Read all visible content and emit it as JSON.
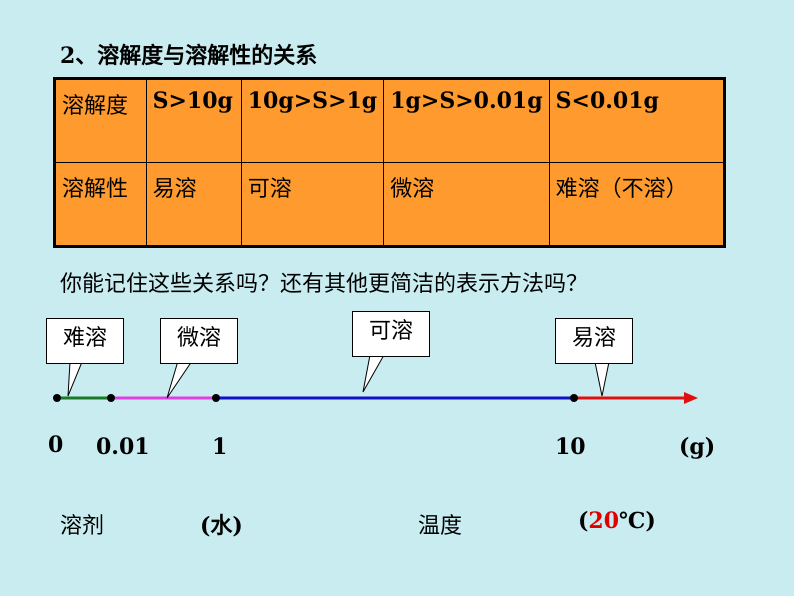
{
  "heading": "2、溶解度与溶解性的关系",
  "table": {
    "rows": [
      [
        "溶解度",
        "S>10g",
        "10g>S>1g",
        "1g>S>0.01g",
        "S<0.01g"
      ],
      [
        "溶解性",
        "易溶",
        "可溶",
        "微溶",
        "难溶（不溶）"
      ]
    ]
  },
  "question": "你能记住这些关系吗？还有其他更简洁的表示方法吗？",
  "callouts": [
    "难溶",
    "微溶",
    "可溶",
    "易溶"
  ],
  "ticks": [
    "0",
    "0.01",
    "1",
    "10",
    "(g)"
  ],
  "footer": {
    "solvent": "溶剂",
    "water": "(水)",
    "temperature": "温度",
    "temp_open": "(",
    "temp_value": "20",
    "temp_unit": "℃)"
  },
  "colors": {
    "segment_insoluble": "#1b7a2a",
    "segment_slightly": "#e040e0",
    "segment_soluble": "#1010c8",
    "segment_easily": "#e01010",
    "table_bg": "#ff9b2e",
    "background": "#c9ecf0"
  }
}
